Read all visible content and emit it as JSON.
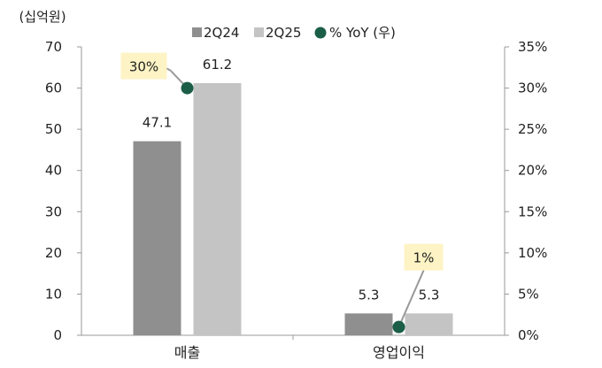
{
  "chart_data": {
    "type": "bar",
    "unit_label": "(십억원)",
    "categories": [
      "매출",
      "영업이익"
    ],
    "series": [
      {
        "name": "2Q24",
        "values": [
          47.1,
          5.3
        ],
        "color": "#8f8f8f"
      },
      {
        "name": "2Q25",
        "values": [
          61.2,
          5.3
        ],
        "color": "#c4c4c4"
      }
    ],
    "line_series": {
      "name": "% YoY (우)",
      "values": [
        30,
        1
      ],
      "labels": [
        "30%",
        "1%"
      ],
      "color": "#1b5e47"
    },
    "ylim": [
      0,
      70
    ],
    "y_ticks": [
      "0",
      "10",
      "20",
      "30",
      "40",
      "50",
      "60",
      "70"
    ],
    "y2lim": [
      0,
      35
    ],
    "y2_ticks": [
      "0%",
      "5%",
      "10%",
      "15%",
      "20%",
      "25%",
      "30%",
      "35%"
    ],
    "data_labels": [
      [
        "47.1",
        "5.3"
      ],
      [
        "61.2",
        "5.3"
      ]
    ],
    "callout_bg": "#fdf3c4",
    "legend_position": "top"
  }
}
